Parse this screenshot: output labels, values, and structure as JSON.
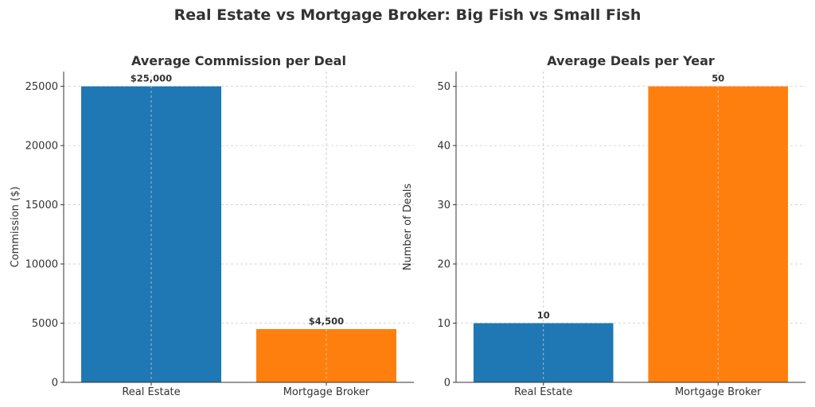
{
  "title": "Real Estate vs Mortgage Broker: Big Fish vs Small Fish",
  "chart_data": [
    {
      "type": "bar",
      "title": "Average Commission per Deal",
      "xlabel": "",
      "ylabel": "Commission ($)",
      "categories": [
        "Real Estate",
        "Mortgage Broker"
      ],
      "values": [
        25000,
        4500
      ],
      "data_labels": [
        "$25,000",
        "$4,500"
      ],
      "colors": [
        "#1f77b4",
        "#ff7f0e"
      ],
      "ylim": [
        0,
        26250
      ],
      "yticks": [
        0,
        5000,
        10000,
        15000,
        20000,
        25000
      ],
      "grid": true,
      "legend": "none"
    },
    {
      "type": "bar",
      "title": "Average Deals per Year",
      "xlabel": "",
      "ylabel": "Number of Deals",
      "categories": [
        "Real Estate",
        "Mortgage Broker"
      ],
      "values": [
        10,
        50
      ],
      "data_labels": [
        "10",
        "50"
      ],
      "colors": [
        "#1f77b4",
        "#ff7f0e"
      ],
      "ylim": [
        0,
        52.5
      ],
      "yticks": [
        0,
        10,
        20,
        30,
        40,
        50
      ],
      "grid": true,
      "legend": "none"
    }
  ]
}
